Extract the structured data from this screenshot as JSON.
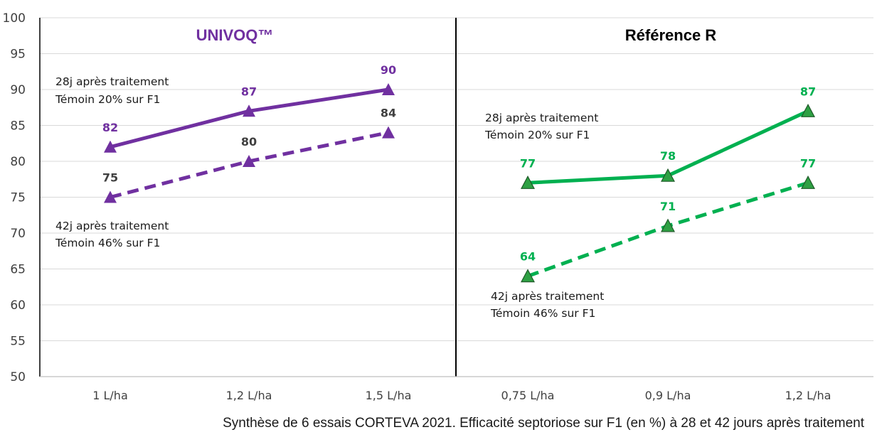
{
  "chart_data": {
    "type": "line",
    "ylim": [
      50,
      100
    ],
    "yticks": [
      50,
      55,
      60,
      65,
      70,
      75,
      80,
      85,
      90,
      95,
      100
    ],
    "grid": true,
    "caption": "Synthèse de 6 essais CORTEVA 2021. Efficacité septoriose sur F1 (en %) à 28 et 42 jours après traitement",
    "colors": {
      "univoq": "#7030a0",
      "reference": "#00b050",
      "reference_marker": "#2ea043",
      "label_dark": "#404040"
    },
    "panels": [
      {
        "title": "UNIVOQ™",
        "categories": [
          "1 L/ha",
          "1,2 L/ha",
          "1,5 L/ha"
        ],
        "color": "#7030a0",
        "series": [
          {
            "values": [
              82,
              87,
              90
            ],
            "style": "solid",
            "data_label_color": "#7030a0"
          },
          {
            "values": [
              75,
              80,
              84
            ],
            "style": "dashed",
            "data_label_color": "#404040"
          }
        ],
        "annotations": [
          {
            "lines": [
              "28j après traitement",
              "Témoin 20% sur F1"
            ]
          },
          {
            "lines": [
              "42j après traitement",
              "Témoin 46% sur F1"
            ]
          }
        ]
      },
      {
        "title": "Référence R",
        "categories": [
          "0,75 L/ha",
          "0,9 L/ha",
          "1,2 L/ha"
        ],
        "color": "#00b050",
        "series": [
          {
            "values": [
              77,
              78,
              87
            ],
            "style": "solid",
            "data_label_color": "#00b050"
          },
          {
            "values": [
              64,
              71,
              77
            ],
            "style": "dashed",
            "data_label_color": "#00b050"
          }
        ],
        "annotations": [
          {
            "lines": [
              "28j après traitement",
              "Témoin 20% sur F1"
            ]
          },
          {
            "lines": [
              "42j après traitement",
              "Témoin 46% sur F1"
            ]
          }
        ]
      }
    ]
  }
}
